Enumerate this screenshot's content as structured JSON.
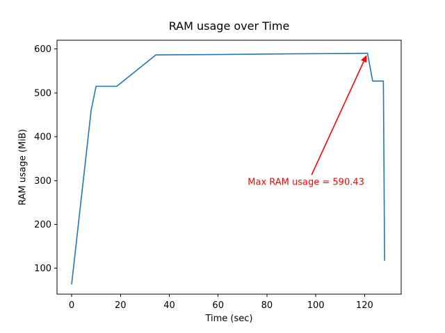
{
  "chart_data": {
    "type": "line",
    "title": "RAM usage over Time",
    "xlabel": "Time (sec)",
    "ylabel": "RAM usage (MiB)",
    "xlim": [
      -6,
      135
    ],
    "ylim": [
      41,
      620
    ],
    "xticks": [
      0,
      20,
      40,
      60,
      80,
      100,
      120
    ],
    "yticks": [
      100,
      200,
      300,
      400,
      500,
      600
    ],
    "grid": false,
    "legend": null,
    "background_color": "#ffffff",
    "spine_color": "#000000",
    "line_color": "#1f77b4",
    "series": [
      {
        "name": "RAM usage",
        "points": [
          [
            0,
            64
          ],
          [
            8,
            461
          ],
          [
            10,
            515
          ],
          [
            18.5,
            515
          ],
          [
            34.5,
            586.5
          ],
          [
            60,
            587.5
          ],
          [
            90,
            589
          ],
          [
            118,
            590
          ],
          [
            121.2,
            590.43
          ],
          [
            123.3,
            527
          ],
          [
            127.7,
            527
          ],
          [
            128.2,
            118
          ]
        ]
      }
    ],
    "annotation": {
      "label": "Max RAM usage = 590.43",
      "max_value": 590.43,
      "color": "#ff0000",
      "xy": [
        121.2,
        590.43
      ],
      "arrow_tail": [
        98.3,
        313
      ],
      "text_center": [
        96,
        296
      ]
    }
  }
}
